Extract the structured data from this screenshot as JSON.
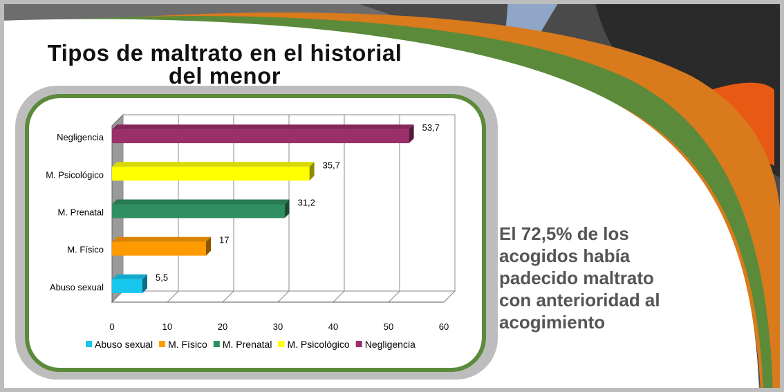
{
  "slide": {
    "title_line1": "Tipos de maltrato en el historial",
    "title_line2": "del menor",
    "side_text": [
      "El 72,5% de los",
      "acogidos había",
      "padecido maltrato",
      "con anterioridad al",
      "acogimiento"
    ]
  },
  "colors": {
    "frame_border": "#5b8a3a",
    "orange_band": "#d97a1c",
    "photo_dark": "#3a3a3a"
  },
  "chart_data": {
    "type": "bar",
    "orientation": "horizontal",
    "categories": [
      "Abuso sexual",
      "M. Físico",
      "M. Prenatal",
      "M. Psicológico",
      "Negligencia"
    ],
    "values": [
      5.5,
      17,
      31.2,
      35.7,
      53.7
    ],
    "value_labels": [
      "5,5",
      "17",
      "31,2",
      "35,7",
      "53,7"
    ],
    "colors": [
      "#17c7ee",
      "#ff9a00",
      "#2f8f62",
      "#ffff00",
      "#9b2f6a"
    ],
    "xlim": [
      0,
      60
    ],
    "xticks": [
      0,
      10,
      20,
      30,
      40,
      50,
      60
    ],
    "grid": true,
    "legend": {
      "position": "bottom",
      "items": [
        "Abuso sexual",
        "M. Físico",
        "M. Prenatal",
        "M. Psicológico",
        "Negligencia"
      ]
    }
  }
}
